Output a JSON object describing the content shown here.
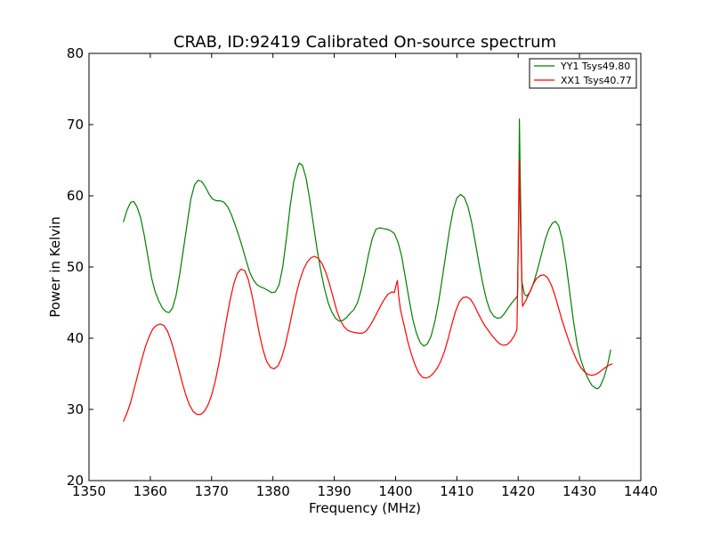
{
  "chart_data": {
    "type": "line",
    "title": "CRAB, ID:92419 Calibrated On-source spectrum",
    "xlabel": "Frequency (MHz)",
    "ylabel": "Power in Kelvin",
    "xlim": [
      1350,
      1440
    ],
    "ylim": [
      20,
      80
    ],
    "xticks": [
      1350,
      1360,
      1370,
      1380,
      1390,
      1400,
      1410,
      1420,
      1430,
      1440
    ],
    "yticks": [
      20,
      30,
      40,
      50,
      60,
      70,
      80
    ],
    "grid": false,
    "legend_position": "top-right",
    "series": [
      {
        "name": "YY1 Tsys49.80",
        "color": "#008000",
        "points": [
          [
            1355.6,
            56.3
          ],
          [
            1356.2,
            58
          ],
          [
            1356.8,
            59.1
          ],
          [
            1357.3,
            59.2
          ],
          [
            1357.8,
            58.5
          ],
          [
            1358.4,
            57
          ],
          [
            1359,
            54.5
          ],
          [
            1359.6,
            51.5
          ],
          [
            1360.2,
            48.5
          ],
          [
            1360.8,
            46.5
          ],
          [
            1361.4,
            45.2
          ],
          [
            1362,
            44.2
          ],
          [
            1362.6,
            43.7
          ],
          [
            1363.1,
            43.6
          ],
          [
            1363.6,
            44.2
          ],
          [
            1364.2,
            46
          ],
          [
            1364.8,
            49
          ],
          [
            1365.4,
            52.5
          ],
          [
            1366,
            56
          ],
          [
            1366.6,
            59.5
          ],
          [
            1367.2,
            61.5
          ],
          [
            1367.8,
            62.2
          ],
          [
            1368.4,
            62
          ],
          [
            1369,
            61.2
          ],
          [
            1369.6,
            60.2
          ],
          [
            1370.2,
            59.5
          ],
          [
            1370.8,
            59.3
          ],
          [
            1371.4,
            59.3
          ],
          [
            1372,
            59.1
          ],
          [
            1372.6,
            58.5
          ],
          [
            1373.2,
            57.4
          ],
          [
            1373.8,
            56
          ],
          [
            1374.4,
            54.5
          ],
          [
            1375,
            52.8
          ],
          [
            1375.6,
            51
          ],
          [
            1376.2,
            49.3
          ],
          [
            1376.8,
            48.2
          ],
          [
            1377.4,
            47.5
          ],
          [
            1378,
            47.2
          ],
          [
            1378.6,
            47
          ],
          [
            1379.2,
            46.7
          ],
          [
            1379.8,
            46.4
          ],
          [
            1380.4,
            46.5
          ],
          [
            1381,
            47.5
          ],
          [
            1381.6,
            50
          ],
          [
            1382.2,
            54
          ],
          [
            1382.8,
            58.5
          ],
          [
            1383.4,
            62
          ],
          [
            1384,
            64
          ],
          [
            1384.3,
            64.6
          ],
          [
            1384.8,
            64.3
          ],
          [
            1385.4,
            62.5
          ],
          [
            1386,
            59.5
          ],
          [
            1386.6,
            56
          ],
          [
            1387.2,
            52.5
          ],
          [
            1387.8,
            49.5
          ],
          [
            1388.4,
            47
          ],
          [
            1389,
            45
          ],
          [
            1389.6,
            43.7
          ],
          [
            1390.2,
            42.8
          ],
          [
            1390.8,
            42.4
          ],
          [
            1391.4,
            42.5
          ],
          [
            1392,
            42.9
          ],
          [
            1392.6,
            43.5
          ],
          [
            1393.2,
            44
          ],
          [
            1393.8,
            45
          ],
          [
            1394.4,
            46.8
          ],
          [
            1395,
            49.2
          ],
          [
            1395.6,
            51.8
          ],
          [
            1396.2,
            54
          ],
          [
            1396.8,
            55.3
          ],
          [
            1397.4,
            55.5
          ],
          [
            1398,
            55.4
          ],
          [
            1398.6,
            55.3
          ],
          [
            1399.2,
            55.1
          ],
          [
            1399.8,
            54.7
          ],
          [
            1400.4,
            53.5
          ],
          [
            1401,
            51.5
          ],
          [
            1401.6,
            48.5
          ],
          [
            1402.2,
            45.5
          ],
          [
            1402.8,
            42.7
          ],
          [
            1403.4,
            40.7
          ],
          [
            1404,
            39.4
          ],
          [
            1404.6,
            38.9
          ],
          [
            1405.2,
            39.2
          ],
          [
            1405.8,
            40.3
          ],
          [
            1406.4,
            42.3
          ],
          [
            1407,
            45
          ],
          [
            1407.6,
            48.3
          ],
          [
            1408.2,
            51.8
          ],
          [
            1408.8,
            55.2
          ],
          [
            1409.4,
            58
          ],
          [
            1410,
            59.7
          ],
          [
            1410.6,
            60.2
          ],
          [
            1411.2,
            59.8
          ],
          [
            1411.8,
            58.5
          ],
          [
            1412.4,
            56.3
          ],
          [
            1413,
            53.5
          ],
          [
            1413.6,
            50.5
          ],
          [
            1414.2,
            47.8
          ],
          [
            1414.8,
            45.5
          ],
          [
            1415.4,
            43.9
          ],
          [
            1416,
            43.1
          ],
          [
            1416.6,
            42.8
          ],
          [
            1417.2,
            42.9
          ],
          [
            1417.8,
            43.5
          ],
          [
            1418.4,
            44.3
          ],
          [
            1419,
            45
          ],
          [
            1419.6,
            45.6
          ],
          [
            1419.9,
            46
          ],
          [
            1420.1,
            60
          ],
          [
            1420.2,
            70.8
          ],
          [
            1420.35,
            62
          ],
          [
            1420.6,
            48
          ],
          [
            1421,
            46.2
          ],
          [
            1421.4,
            45.9
          ],
          [
            1422,
            46.6
          ],
          [
            1422.6,
            48
          ],
          [
            1423.2,
            49.8
          ],
          [
            1423.8,
            51.8
          ],
          [
            1424.4,
            53.8
          ],
          [
            1425,
            55.3
          ],
          [
            1425.6,
            56.2
          ],
          [
            1426.1,
            56.4
          ],
          [
            1426.6,
            55.8
          ],
          [
            1427.2,
            53.8
          ],
          [
            1427.8,
            50.5
          ],
          [
            1428.4,
            46.5
          ],
          [
            1429,
            42.5
          ],
          [
            1429.6,
            39.2
          ],
          [
            1430.2,
            37
          ],
          [
            1430.8,
            35.5
          ],
          [
            1431.4,
            34.3
          ],
          [
            1432,
            33.4
          ],
          [
            1432.6,
            33
          ],
          [
            1433,
            32.9
          ],
          [
            1433.4,
            33.3
          ],
          [
            1434,
            34.5
          ],
          [
            1434.6,
            36.3
          ],
          [
            1435.1,
            38.4
          ]
        ]
      },
      {
        "name": "XX1 Tsys40.77",
        "color": "#ff0000",
        "points": [
          [
            1355.6,
            28.3
          ],
          [
            1356.2,
            29.5
          ],
          [
            1356.8,
            31
          ],
          [
            1357.4,
            33
          ],
          [
            1358,
            35
          ],
          [
            1358.6,
            37
          ],
          [
            1359.2,
            38.8
          ],
          [
            1359.8,
            40.2
          ],
          [
            1360.4,
            41.3
          ],
          [
            1361,
            41.8
          ],
          [
            1361.6,
            42
          ],
          [
            1362.2,
            41.8
          ],
          [
            1362.8,
            41
          ],
          [
            1363.4,
            39.6
          ],
          [
            1364,
            37.8
          ],
          [
            1364.6,
            35.8
          ],
          [
            1365.2,
            33.8
          ],
          [
            1365.8,
            32
          ],
          [
            1366.4,
            30.6
          ],
          [
            1367,
            29.7
          ],
          [
            1367.6,
            29.3
          ],
          [
            1368.2,
            29.3
          ],
          [
            1368.8,
            29.7
          ],
          [
            1369.4,
            30.6
          ],
          [
            1370,
            32
          ],
          [
            1370.6,
            34
          ],
          [
            1371.2,
            36.5
          ],
          [
            1371.8,
            39.5
          ],
          [
            1372.4,
            42.5
          ],
          [
            1373,
            45.3
          ],
          [
            1373.6,
            47.6
          ],
          [
            1374.2,
            49.1
          ],
          [
            1374.8,
            49.7
          ],
          [
            1375.4,
            49.5
          ],
          [
            1376,
            48.2
          ],
          [
            1376.6,
            46
          ],
          [
            1377.2,
            43.3
          ],
          [
            1377.8,
            40.6
          ],
          [
            1378.4,
            38.3
          ],
          [
            1379,
            36.7
          ],
          [
            1379.6,
            35.9
          ],
          [
            1380.2,
            35.7
          ],
          [
            1380.8,
            36.1
          ],
          [
            1381.4,
            37.2
          ],
          [
            1382,
            39
          ],
          [
            1382.6,
            41.3
          ],
          [
            1383.2,
            43.8
          ],
          [
            1383.8,
            46.2
          ],
          [
            1384.4,
            48.2
          ],
          [
            1385,
            49.7
          ],
          [
            1385.6,
            50.7
          ],
          [
            1386.2,
            51.3
          ],
          [
            1386.8,
            51.5
          ],
          [
            1387.4,
            51.2
          ],
          [
            1388,
            50.5
          ],
          [
            1388.6,
            49.3
          ],
          [
            1389.2,
            47.7
          ],
          [
            1389.8,
            45.8
          ],
          [
            1390.4,
            43.9
          ],
          [
            1391,
            42.5
          ],
          [
            1391.6,
            41.6
          ],
          [
            1392.2,
            41.1
          ],
          [
            1392.8,
            40.9
          ],
          [
            1393.4,
            40.8
          ],
          [
            1394,
            40.7
          ],
          [
            1394.6,
            40.7
          ],
          [
            1395.2,
            41
          ],
          [
            1395.8,
            41.7
          ],
          [
            1396.4,
            42.6
          ],
          [
            1397,
            43.6
          ],
          [
            1397.6,
            44.6
          ],
          [
            1398.2,
            45.5
          ],
          [
            1398.8,
            46.2
          ],
          [
            1399.4,
            46.5
          ],
          [
            1399.8,
            46.4
          ],
          [
            1400.1,
            47.5
          ],
          [
            1400.3,
            48.1
          ],
          [
            1400.5,
            46
          ],
          [
            1400.8,
            44
          ],
          [
            1401.4,
            41.8
          ],
          [
            1402,
            39.5
          ],
          [
            1402.6,
            37.7
          ],
          [
            1403.2,
            36.2
          ],
          [
            1403.8,
            35.1
          ],
          [
            1404.4,
            34.5
          ],
          [
            1405,
            34.4
          ],
          [
            1405.6,
            34.6
          ],
          [
            1406.2,
            35.1
          ],
          [
            1406.8,
            35.8
          ],
          [
            1407.4,
            36.8
          ],
          [
            1408,
            38.2
          ],
          [
            1408.6,
            40
          ],
          [
            1409.2,
            42
          ],
          [
            1409.8,
            43.8
          ],
          [
            1410.4,
            45.1
          ],
          [
            1411,
            45.7
          ],
          [
            1411.6,
            45.8
          ],
          [
            1412.2,
            45.5
          ],
          [
            1412.8,
            44.7
          ],
          [
            1413.4,
            43.6
          ],
          [
            1414,
            42.6
          ],
          [
            1414.6,
            41.7
          ],
          [
            1415.2,
            41
          ],
          [
            1415.8,
            40.3
          ],
          [
            1416.4,
            39.7
          ],
          [
            1417,
            39.2
          ],
          [
            1417.6,
            39
          ],
          [
            1418.2,
            39.1
          ],
          [
            1418.8,
            39.6
          ],
          [
            1419.4,
            40.4
          ],
          [
            1419.8,
            41.2
          ],
          [
            1420.05,
            55
          ],
          [
            1420.2,
            65
          ],
          [
            1420.35,
            57
          ],
          [
            1420.7,
            44.5
          ],
          [
            1421.2,
            45.2
          ],
          [
            1421.8,
            46.3
          ],
          [
            1422.4,
            47.5
          ],
          [
            1423,
            48.4
          ],
          [
            1423.6,
            48.8
          ],
          [
            1424.2,
            48.9
          ],
          [
            1424.8,
            48.5
          ],
          [
            1425.4,
            47.5
          ],
          [
            1426,
            46
          ],
          [
            1426.6,
            44.2
          ],
          [
            1427.2,
            42.4
          ],
          [
            1427.8,
            40.8
          ],
          [
            1428.4,
            39.3
          ],
          [
            1429,
            38
          ],
          [
            1429.6,
            36.8
          ],
          [
            1430.2,
            35.9
          ],
          [
            1430.8,
            35.3
          ],
          [
            1431.4,
            34.9
          ],
          [
            1432,
            34.8
          ],
          [
            1432.6,
            34.9
          ],
          [
            1433.2,
            35.2
          ],
          [
            1433.8,
            35.6
          ],
          [
            1434.4,
            36
          ],
          [
            1435,
            36.3
          ],
          [
            1435.4,
            36.4
          ]
        ]
      }
    ]
  }
}
